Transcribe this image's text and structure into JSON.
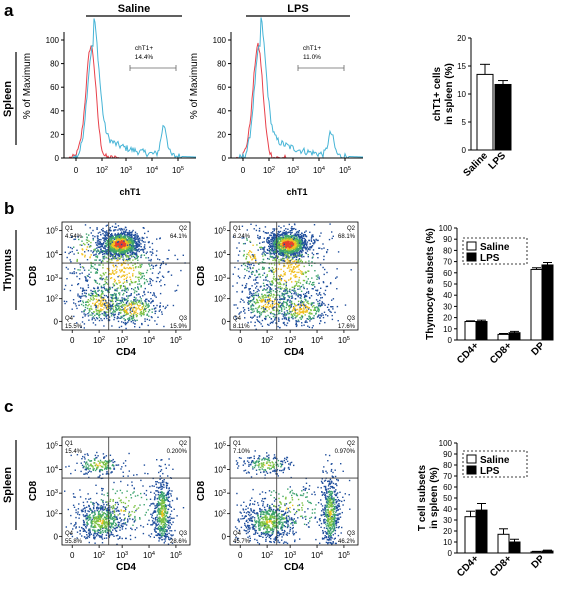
{
  "panel_letters": {
    "a": "a",
    "b": "b",
    "c": "c"
  },
  "conditions": {
    "saline": "Saline",
    "lps": "LPS"
  },
  "row_labels": {
    "a": "Spleen",
    "b": "Thymus",
    "c": "Spleen"
  },
  "panel_a": {
    "y_label": "% of Maximum",
    "x_label": "chT1",
    "y_ticks": [
      "0",
      "20",
      "40",
      "60",
      "80",
      "100"
    ],
    "x_ticks": [
      {
        "base": "0",
        "exp": ""
      },
      {
        "base": "10",
        "exp": "2"
      },
      {
        "base": "10",
        "exp": "3"
      },
      {
        "base": "10",
        "exp": "4"
      },
      {
        "base": "10",
        "exp": "5"
      }
    ],
    "gate_name": "chT1+",
    "saline_pct": "14.4%",
    "lps_pct": "11.0%",
    "colors": {
      "control": "#e8414b",
      "sample": "#46b4d6"
    }
  },
  "flow_labels": {
    "x": "CD4",
    "y": "CD8",
    "x_ticks": [
      {
        "base": "0",
        "exp": ""
      },
      {
        "base": "10",
        "exp": "2"
      },
      {
        "base": "10",
        "exp": "3"
      },
      {
        "base": "10",
        "exp": "4"
      },
      {
        "base": "10",
        "exp": "5"
      }
    ],
    "y_ticks": [
      {
        "base": "0",
        "exp": ""
      },
      {
        "base": "10",
        "exp": "2"
      },
      {
        "base": "10",
        "exp": "3"
      },
      {
        "base": "10",
        "exp": "4"
      },
      {
        "base": "10",
        "exp": "5"
      }
    ]
  },
  "panel_b": {
    "saline": {
      "q1": {
        "name": "Q1",
        "val": "4.54%"
      },
      "q2": {
        "name": "Q2",
        "val": "64.1%"
      },
      "q3": {
        "name": "Q3",
        "val": "15.9%"
      },
      "q4": {
        "name": "Q4",
        "val": "15.5%"
      }
    },
    "lps": {
      "q1": {
        "name": "Q1",
        "val": "6.24%"
      },
      "q2": {
        "name": "Q2",
        "val": "68.1%"
      },
      "q3": {
        "name": "Q3",
        "val": "17.6%"
      },
      "q4": {
        "name": "Q4",
        "val": "8.11%"
      }
    }
  },
  "panel_c": {
    "saline": {
      "q1": {
        "name": "Q1",
        "val": "15.4%"
      },
      "q2": {
        "name": "Q2",
        "val": "0.200%"
      },
      "q3": {
        "name": "Q3",
        "val": "28.6%"
      },
      "q4": {
        "name": "Q4",
        "val": "55.8%"
      }
    },
    "lps": {
      "q1": {
        "name": "Q1",
        "val": "7.10%"
      },
      "q2": {
        "name": "Q2",
        "val": "0.970%"
      },
      "q3": {
        "name": "Q3",
        "val": "46.2%"
      },
      "q4": {
        "name": "Q4",
        "val": "45.7%"
      }
    }
  },
  "chart_data": [
    {
      "type": "bar",
      "categories": [
        "Saline",
        "LPS"
      ],
      "values": [
        13.5,
        11.7
      ],
      "errors": [
        1.8,
        0.7
      ],
      "ylabel": "chT1+ cells in spleen (%)",
      "xlabel": "",
      "ylim": [
        0,
        20
      ],
      "yticks": [
        0,
        5,
        10,
        15,
        20
      ],
      "fills": [
        "#ffffff",
        "#000000"
      ]
    },
    {
      "type": "bar",
      "categories": [
        "CD4+",
        "CD8+",
        "DP"
      ],
      "ylabel": "Thymocyte subsets (%)",
      "ylim": [
        0,
        100
      ],
      "yticks": [
        0,
        10,
        20,
        30,
        40,
        50,
        60,
        70,
        80,
        90,
        100
      ],
      "legend_position": "top",
      "series": [
        {
          "name": "Saline",
          "fill": "#ffffff",
          "values": [
            16.5,
            5.0,
            63.0
          ],
          "errors": [
            0.6,
            0.8,
            1.5
          ]
        },
        {
          "name": "LPS",
          "fill": "#000000",
          "values": [
            16.5,
            6.5,
            67.0
          ],
          "errors": [
            1.2,
            1.2,
            2.2
          ]
        }
      ]
    },
    {
      "type": "bar",
      "categories": [
        "CD4+",
        "CD8+",
        "DP"
      ],
      "ylabel": "T cell subsets in spleen (%)",
      "ylim": [
        0,
        100
      ],
      "yticks": [
        0,
        10,
        20,
        30,
        40,
        50,
        60,
        70,
        80,
        90,
        100
      ],
      "legend_position": "top",
      "series": [
        {
          "name": "Saline",
          "fill": "#ffffff",
          "values": [
            33.0,
            17.0,
            1.0
          ],
          "errors": [
            5.0,
            5.0,
            0.5
          ]
        },
        {
          "name": "LPS",
          "fill": "#000000",
          "values": [
            39.0,
            10.0,
            1.8
          ],
          "errors": [
            6.0,
            2.5,
            0.8
          ]
        }
      ]
    }
  ]
}
